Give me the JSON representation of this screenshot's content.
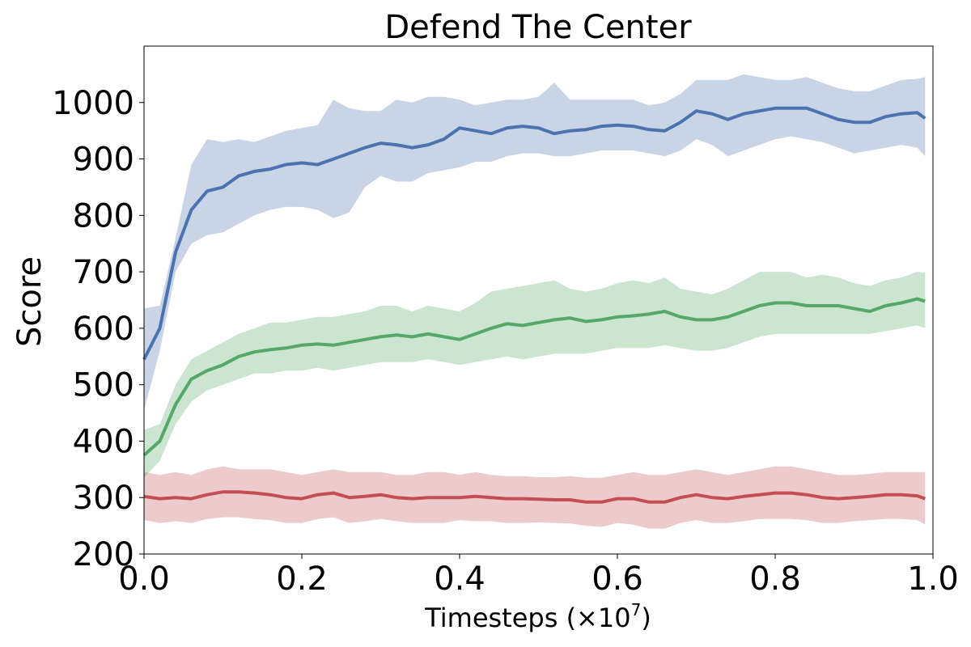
{
  "chart_data": {
    "type": "line",
    "title": "Defend The Center",
    "xlabel": "Timesteps (×10",
    "xlabel_exponent": "7",
    "xlabel_suffix": ")",
    "ylabel": "Score",
    "xlim": [
      0.0,
      1.0
    ],
    "ylim": [
      200,
      1100
    ],
    "xticks": [
      "0.0",
      "0.2",
      "0.4",
      "0.6",
      "0.8",
      "1.0"
    ],
    "yticks": [
      "200",
      "300",
      "400",
      "500",
      "600",
      "700",
      "800",
      "900",
      "1000"
    ],
    "x": [
      0.0,
      0.02,
      0.04,
      0.06,
      0.08,
      0.1,
      0.12,
      0.14,
      0.16,
      0.18,
      0.2,
      0.22,
      0.24,
      0.26,
      0.28,
      0.3,
      0.32,
      0.34,
      0.36,
      0.38,
      0.4,
      0.42,
      0.44,
      0.46,
      0.48,
      0.5,
      0.52,
      0.54,
      0.56,
      0.58,
      0.6,
      0.62,
      0.64,
      0.66,
      0.68,
      0.7,
      0.72,
      0.74,
      0.76,
      0.78,
      0.8,
      0.82,
      0.84,
      0.86,
      0.88,
      0.9,
      0.92,
      0.94,
      0.96,
      0.98,
      0.99
    ],
    "series": [
      {
        "name": "blue",
        "color": "#4c72b0",
        "values": [
          545,
          600,
          735,
          810,
          843,
          850,
          870,
          878,
          882,
          890,
          893,
          890,
          900,
          910,
          920,
          928,
          925,
          920,
          925,
          935,
          955,
          950,
          945,
          955,
          958,
          955,
          945,
          950,
          952,
          958,
          960,
          958,
          952,
          950,
          965,
          985,
          980,
          970,
          980,
          985,
          990,
          990,
          990,
          980,
          970,
          965,
          965,
          975,
          980,
          982,
          972
        ],
        "upper": [
          635,
          640,
          760,
          890,
          935,
          930,
          935,
          930,
          940,
          950,
          955,
          960,
          1005,
          990,
          985,
          985,
          1005,
          1000,
          1010,
          1010,
          1005,
          995,
          1000,
          1005,
          1005,
          1010,
          1035,
          1005,
          1005,
          1005,
          1005,
          1005,
          995,
          1000,
          1015,
          1040,
          1040,
          1040,
          1050,
          1045,
          1040,
          1040,
          1045,
          1035,
          1025,
          1020,
          1020,
          1030,
          1040,
          1042,
          1045
        ],
        "lower": [
          455,
          560,
          700,
          750,
          765,
          770,
          785,
          800,
          810,
          815,
          815,
          810,
          795,
          805,
          850,
          870,
          860,
          860,
          875,
          880,
          885,
          895,
          895,
          905,
          910,
          910,
          905,
          905,
          910,
          915,
          915,
          915,
          910,
          905,
          915,
          935,
          925,
          905,
          915,
          925,
          935,
          940,
          935,
          930,
          920,
          910,
          915,
          920,
          925,
          920,
          905
        ]
      },
      {
        "name": "green",
        "color": "#55a868",
        "values": [
          375,
          400,
          465,
          510,
          525,
          535,
          550,
          558,
          562,
          565,
          570,
          572,
          570,
          575,
          580,
          585,
          588,
          585,
          590,
          585,
          580,
          590,
          600,
          608,
          605,
          610,
          615,
          618,
          612,
          615,
          620,
          622,
          625,
          630,
          620,
          615,
          615,
          620,
          630,
          640,
          645,
          645,
          640,
          640,
          640,
          635,
          630,
          640,
          645,
          652,
          648
        ],
        "upper": [
          420,
          430,
          500,
          545,
          560,
          575,
          590,
          600,
          610,
          610,
          615,
          620,
          620,
          625,
          630,
          640,
          640,
          630,
          640,
          635,
          630,
          645,
          665,
          670,
          675,
          680,
          685,
          670,
          665,
          670,
          680,
          685,
          680,
          690,
          670,
          665,
          660,
          670,
          685,
          700,
          700,
          700,
          690,
          695,
          690,
          680,
          675,
          685,
          690,
          700,
          698
        ],
        "lower": [
          335,
          365,
          430,
          470,
          490,
          500,
          510,
          520,
          520,
          525,
          525,
          530,
          525,
          530,
          535,
          540,
          540,
          540,
          545,
          540,
          535,
          540,
          545,
          550,
          545,
          550,
          555,
          555,
          555,
          560,
          565,
          565,
          565,
          570,
          565,
          560,
          560,
          565,
          575,
          585,
          590,
          590,
          590,
          590,
          590,
          590,
          590,
          595,
          600,
          605,
          600
        ]
      },
      {
        "name": "red",
        "color": "#c44e52",
        "values": [
          302,
          298,
          300,
          298,
          305,
          310,
          310,
          308,
          305,
          300,
          298,
          305,
          308,
          300,
          302,
          305,
          300,
          298,
          300,
          300,
          300,
          302,
          300,
          298,
          298,
          297,
          296,
          296,
          292,
          292,
          298,
          298,
          292,
          292,
          300,
          305,
          300,
          298,
          302,
          305,
          308,
          308,
          305,
          300,
          298,
          300,
          302,
          305,
          305,
          303,
          298
        ],
        "upper": [
          345,
          340,
          345,
          340,
          350,
          355,
          350,
          350,
          350,
          345,
          340,
          345,
          350,
          345,
          345,
          345,
          340,
          340,
          345,
          345,
          340,
          345,
          340,
          338,
          338,
          336,
          336,
          338,
          335,
          335,
          340,
          345,
          340,
          340,
          345,
          350,
          345,
          340,
          345,
          350,
          355,
          355,
          350,
          345,
          340,
          340,
          342,
          345,
          345,
          345,
          345
        ],
        "lower": [
          260,
          255,
          258,
          255,
          262,
          265,
          265,
          262,
          260,
          255,
          255,
          262,
          265,
          255,
          258,
          262,
          258,
          255,
          255,
          255,
          260,
          258,
          258,
          255,
          255,
          256,
          255,
          254,
          250,
          248,
          255,
          252,
          245,
          245,
          255,
          260,
          255,
          255,
          258,
          262,
          262,
          262,
          260,
          255,
          255,
          258,
          260,
          262,
          262,
          260,
          252
        ]
      }
    ]
  }
}
